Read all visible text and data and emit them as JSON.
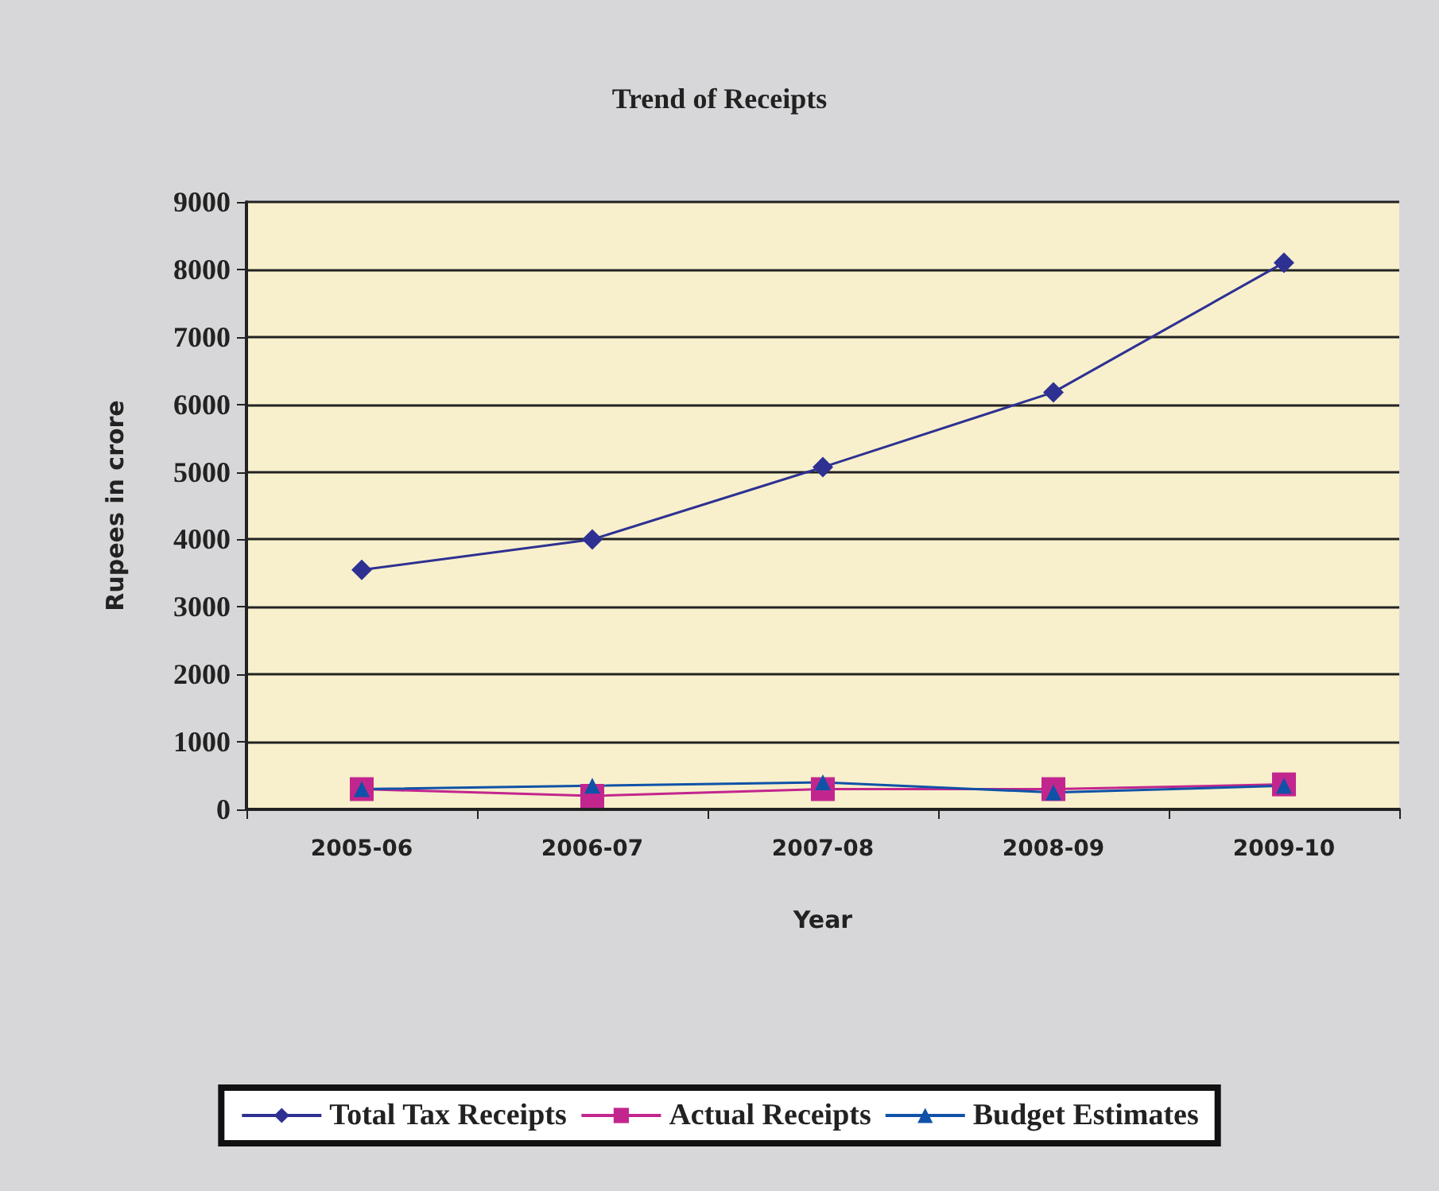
{
  "chart_data": {
    "type": "line",
    "title": "Trend of Receipts",
    "xlabel": "Year",
    "ylabel": "Rupees in crore",
    "categories": [
      "2005-06",
      "2006-07",
      "2007-08",
      "2008-09",
      "2009-10"
    ],
    "series": [
      {
        "name": "Total Tax Receipts",
        "color": "#2e3192",
        "marker": "diamond",
        "values": [
          3550,
          4000,
          5070,
          6180,
          8100
        ]
      },
      {
        "name": "Actual Receipts",
        "color": "#c2268e",
        "marker": "square",
        "values": [
          300,
          200,
          300,
          300,
          370
        ]
      },
      {
        "name": "Budget Estimates",
        "color": "#0f52a8",
        "marker": "triangle",
        "values": [
          300,
          350,
          400,
          250,
          350
        ]
      }
    ],
    "ylim": [
      0,
      9000
    ],
    "yticks": [
      0,
      1000,
      2000,
      3000,
      4000,
      5000,
      6000,
      7000,
      8000,
      9000
    ],
    "grid": "y",
    "legend": "bottom",
    "line_style": "solid"
  }
}
